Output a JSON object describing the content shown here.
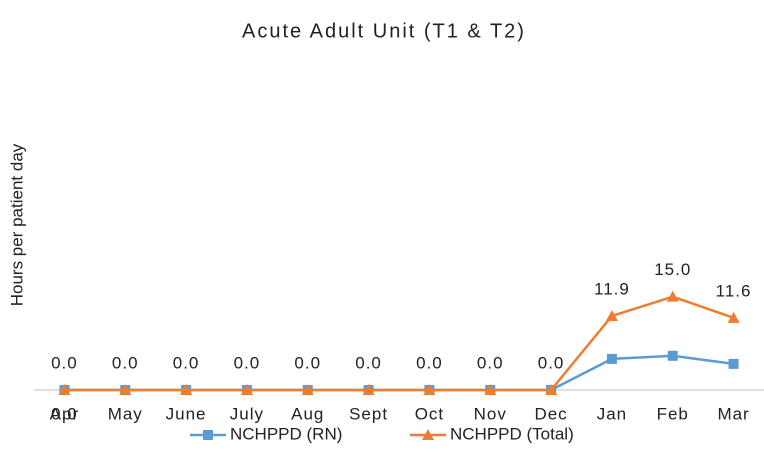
{
  "chart_data": {
    "type": "line",
    "title": "Acute Adult Unit (T1 & T2)",
    "y_label": "Hours per patient day",
    "categories": [
      "Apr",
      "May",
      "June",
      "July",
      "Aug",
      "Sept",
      "Oct",
      "Nov",
      "Dec",
      "Jan",
      "Feb",
      "Mar"
    ],
    "series": [
      {
        "name": "NCHPPD (RN)",
        "color": "#5b9bd5",
        "marker": "square",
        "values": [
          0,
          0,
          0,
          0,
          0,
          0,
          0,
          0,
          0,
          5.0,
          5.5,
          4.2
        ],
        "value_labels": [
          "0.0",
          null,
          null,
          null,
          null,
          null,
          null,
          null,
          null,
          null,
          null,
          null
        ]
      },
      {
        "name": "NCHPPD (Total)",
        "color": "#ed7d31",
        "marker": "triangle",
        "values": [
          0,
          0,
          0,
          0,
          0,
          0,
          0,
          0,
          0,
          11.9,
          15.0,
          11.6
        ],
        "value_labels": [
          "0.0",
          "0.0",
          "0.0",
          "0.0",
          "0.0",
          "0.0",
          "0.0",
          "0.0",
          "0.0",
          "11.9",
          "15.0",
          "11.6"
        ]
      }
    ],
    "ylim": [
      0,
      45
    ],
    "legend": "bottom"
  }
}
